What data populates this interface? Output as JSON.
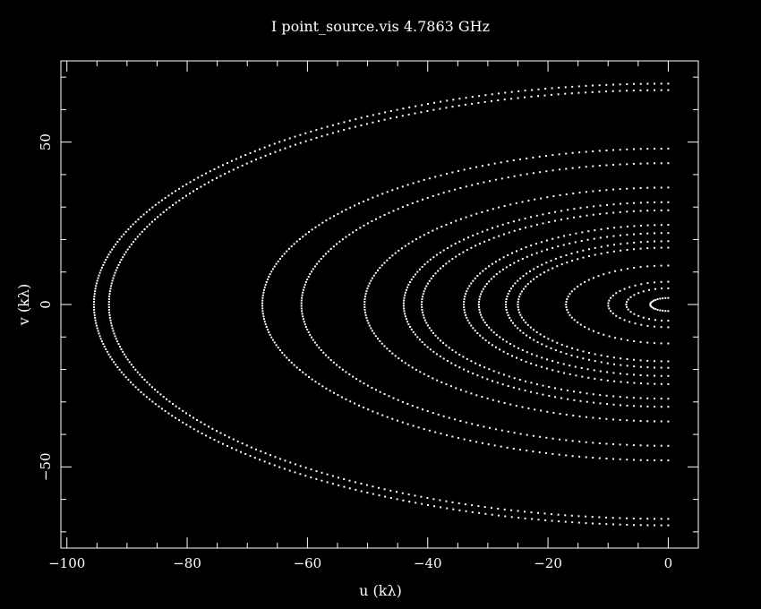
{
  "chart_data": {
    "type": "scatter",
    "title": "I point_source.vis 4.7863 GHz",
    "xlabel": "u (kλ)",
    "ylabel": "v (kλ)",
    "xlim": [
      -101,
      5
    ],
    "ylim": [
      -75,
      75
    ],
    "xticks": [
      -100,
      -80,
      -60,
      -40,
      -20,
      0
    ],
    "yticks": [
      -50,
      0,
      50
    ],
    "xtick_labels": [
      "−100",
      "−80",
      "−60",
      "−40",
      "−20",
      "0"
    ],
    "ytick_labels": [
      "−50",
      "0",
      "50"
    ],
    "grid": false,
    "series": [
      {
        "u_max": 95.5,
        "v_max": 68.0,
        "values": []
      },
      {
        "u_max": 93.0,
        "v_max": 66.0,
        "values": []
      },
      {
        "u_max": 67.5,
        "v_max": 48.0,
        "values": []
      },
      {
        "u_max": 61.0,
        "v_max": 43.5,
        "values": []
      },
      {
        "u_max": 50.5,
        "v_max": 36.0,
        "values": []
      },
      {
        "u_max": 44.0,
        "v_max": 31.5,
        "values": []
      },
      {
        "u_max": 41.0,
        "v_max": 29.0,
        "values": []
      },
      {
        "u_max": 34.0,
        "v_max": 24.5,
        "values": []
      },
      {
        "u_max": 31.5,
        "v_max": 22.0,
        "values": []
      },
      {
        "u_max": 27.0,
        "v_max": 19.5,
        "values": []
      },
      {
        "u_max": 25.0,
        "v_max": 17.5,
        "values": []
      },
      {
        "u_max": 17.0,
        "v_max": 12.0,
        "values": []
      },
      {
        "u_max": 10.0,
        "v_max": 7.0,
        "values": []
      },
      {
        "u_max": 7.0,
        "v_max": 5.0,
        "values": []
      },
      {
        "u_max": 3.0,
        "v_max": 2.0,
        "values": []
      }
    ],
    "colors": {
      "background": "#000000",
      "foreground": "#ffffff"
    }
  }
}
